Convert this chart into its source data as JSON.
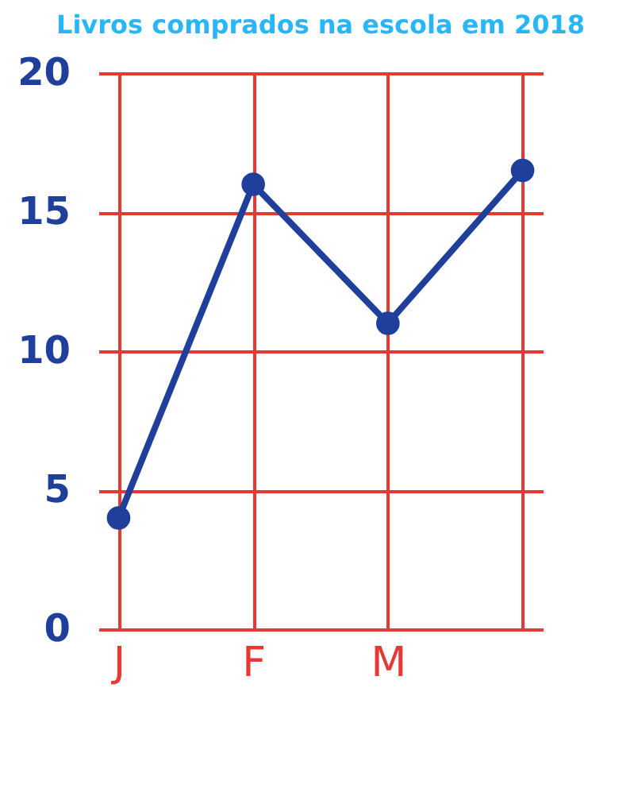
{
  "chart_data": {
    "type": "line",
    "title": "Livros comprados na escola em 2018",
    "categories": [
      "J",
      "F",
      "M",
      null
    ],
    "series": [
      {
        "color": "#1f3f9a",
        "values": [
          4,
          16,
          11,
          16.5
        ]
      }
    ],
    "ylim": [
      0,
      20
    ],
    "yticks": [
      0,
      5,
      10,
      15,
      20
    ],
    "grid": true,
    "marker": "circle"
  }
}
